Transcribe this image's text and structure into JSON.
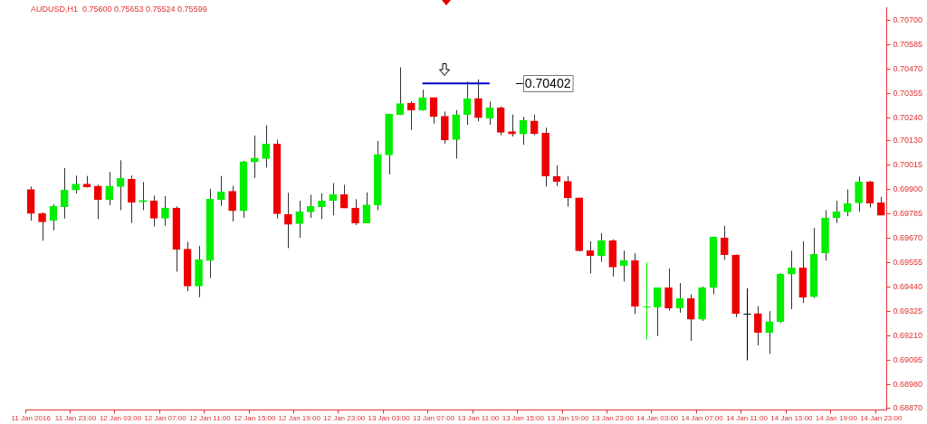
{
  "chart_data": {
    "type": "candlestick",
    "title": "AUDUSD,H1  0.75600 0.75653 0.75524 0.75599",
    "categories": [
      "11 Jan 2016",
      null,
      null,
      null,
      "11 Jan 23:00",
      null,
      null,
      null,
      "12 Jan 03:00",
      null,
      null,
      null,
      "12 Jan 07:00",
      null,
      null,
      null,
      "12 Jan 11:00",
      null,
      null,
      null,
      "12 Jan 15:00",
      null,
      null,
      null,
      "12 Jan 19:00",
      null,
      null,
      null,
      "12 Jan 23:00",
      null,
      null,
      null,
      "13 Jan 03:00",
      null,
      null,
      null,
      "13 Jan 07:00",
      null,
      null,
      null,
      "13 Jan 11:00",
      null,
      null,
      null,
      "13 Jan 15:00",
      null,
      null,
      null,
      "13 Jan 19:00",
      null,
      null,
      null,
      "13 Jan 23:00",
      null,
      null,
      null,
      "14 Jan 03:00",
      null,
      null,
      null,
      "14 Jan 07:00",
      null,
      null,
      null,
      "14 Jan 11:00",
      null,
      null,
      null,
      "14 Jan 15:00",
      null,
      null,
      null,
      "14 Jan 19:00",
      null,
      null,
      null,
      "14 Jan 23:00"
    ],
    "series": [
      {
        "colors": [
          "#ee0000",
          "#ee0000",
          "#00ee00",
          "#00ee00",
          "#00ee00",
          "#ee0000",
          "#ee0000",
          "#00ee00",
          "#00ee00",
          "#ee0000",
          "#00ee00",
          "#ee0000",
          "#00ee00",
          "#ee0000",
          "#ee0000",
          "#00ee00",
          "#00ee00",
          "#00ee00",
          "#ee0000",
          "#00ee00",
          "#00ee00",
          "#00ee00",
          "#ee0000",
          "#ee0000",
          "#00ee00",
          "#00ee00",
          "#00ee00",
          "#00ee00",
          "#ee0000",
          "#ee0000",
          "#00ee00",
          "#00ee00",
          "#00ee00",
          "#00ee00",
          "#ee0000",
          "#00ee00",
          "#ee0000",
          "#ee0000",
          "#00ee00",
          "#00ee00",
          "#ee0000",
          "#00ee00",
          "#ee0000",
          "#ee0000",
          "#00ee00",
          "#ee0000",
          "#ee0000",
          "#ee0000",
          "#ee0000",
          "#ee0000",
          "#ee0000",
          "#00ee00",
          "#ee0000",
          "#00ee00",
          "#ee0000",
          "#00ee00",
          "#00ee00",
          "#ee0000",
          "#00ee00",
          "#ee0000",
          "#00ee00",
          "#00ee00",
          "#ee0000",
          "#ee0000",
          "#000000",
          "#ee0000",
          "#00ee00",
          "#00ee00",
          "#00ee00",
          "#ee0000",
          "#00ee00",
          "#00ee00",
          "#00ee00",
          "#00ee00",
          "#00ee00",
          "#ee0000",
          "#ee0000"
        ],
        "ohlc": [
          [
            0.69901,
            0.69915,
            0.69754,
            0.69788
          ],
          [
            0.69788,
            0.69792,
            0.69659,
            0.69748
          ],
          [
            0.69754,
            0.69831,
            0.69708,
            0.69821
          ],
          [
            0.6982,
            0.70002,
            0.69764,
            0.69899
          ],
          [
            0.69899,
            0.69967,
            0.69882,
            0.69927
          ],
          [
            0.69927,
            0.69965,
            0.6991,
            0.69913
          ],
          [
            0.69917,
            0.69924,
            0.69761,
            0.69854
          ],
          [
            0.69854,
            0.69984,
            0.69827,
            0.69917
          ],
          [
            0.69915,
            0.70039,
            0.69803,
            0.69953
          ],
          [
            0.69949,
            0.69967,
            0.69743,
            0.69841
          ],
          [
            0.69842,
            0.69937,
            0.69803,
            0.6985
          ],
          [
            0.69848,
            0.69872,
            0.69726,
            0.69765
          ],
          [
            0.69765,
            0.69869,
            0.69729,
            0.69814
          ],
          [
            0.69814,
            0.69821,
            0.69513,
            0.69618
          ],
          [
            0.69619,
            0.69654,
            0.6942,
            0.69445
          ],
          [
            0.69445,
            0.69635,
            0.69392,
            0.69569
          ],
          [
            0.69565,
            0.69904,
            0.69483,
            0.69855
          ],
          [
            0.69854,
            0.69965,
            0.69824,
            0.69889
          ],
          [
            0.69893,
            0.69918,
            0.6975,
            0.698
          ],
          [
            0.698,
            0.70036,
            0.69767,
            0.70032
          ],
          [
            0.70031,
            0.70156,
            0.69955,
            0.70049
          ],
          [
            0.70047,
            0.70205,
            0.70005,
            0.70116
          ],
          [
            0.70116,
            0.70136,
            0.69764,
            0.69786
          ],
          [
            0.69784,
            0.69885,
            0.69624,
            0.69736
          ],
          [
            0.6974,
            0.69848,
            0.69673,
            0.69795
          ],
          [
            0.69795,
            0.69876,
            0.69767,
            0.69821
          ],
          [
            0.6982,
            0.69883,
            0.69761,
            0.69847
          ],
          [
            0.69848,
            0.69931,
            0.69779,
            0.69876
          ],
          [
            0.69876,
            0.69923,
            0.69813,
            0.69813
          ],
          [
            0.69814,
            0.69855,
            0.69733,
            0.69743
          ],
          [
            0.69743,
            0.69887,
            0.69743,
            0.69828
          ],
          [
            0.69828,
            0.7013,
            0.69803,
            0.70066
          ],
          [
            0.70064,
            0.70259,
            0.69972,
            0.70257
          ],
          [
            0.70255,
            0.70478,
            0.70252,
            0.70307
          ],
          [
            0.70309,
            0.70317,
            0.70182,
            0.70275
          ],
          [
            0.70276,
            0.70372,
            0.70273,
            0.70334
          ],
          [
            0.70335,
            0.70335,
            0.70212,
            0.70245
          ],
          [
            0.70247,
            0.70269,
            0.70118,
            0.70134
          ],
          [
            0.70137,
            0.70276,
            0.70047,
            0.70254
          ],
          [
            0.70254,
            0.7041,
            0.70206,
            0.7033
          ],
          [
            0.70331,
            0.70421,
            0.70223,
            0.7024
          ],
          [
            0.70238,
            0.70316,
            0.70207,
            0.70287
          ],
          [
            0.70287,
            0.70293,
            0.70157,
            0.70171
          ],
          [
            0.70174,
            0.70255,
            0.70151,
            0.70163
          ],
          [
            0.70163,
            0.70244,
            0.70112,
            0.70227
          ],
          [
            0.70224,
            0.70254,
            0.70157,
            0.70164
          ],
          [
            0.70168,
            0.70193,
            0.69914,
            0.69965
          ],
          [
            0.69963,
            0.70015,
            0.69917,
            0.69939
          ],
          [
            0.69939,
            0.69965,
            0.6982,
            0.69861
          ],
          [
            0.69862,
            0.69862,
            0.69608,
            0.69611
          ],
          [
            0.69612,
            0.69657,
            0.69504,
            0.69588
          ],
          [
            0.69588,
            0.69695,
            0.6956,
            0.6966
          ],
          [
            0.6966,
            0.69666,
            0.6949,
            0.69535
          ],
          [
            0.69541,
            0.69612,
            0.69466,
            0.69565
          ],
          [
            0.69565,
            0.696,
            0.69312,
            0.6935
          ],
          [
            0.6935,
            0.69556,
            0.69192,
            0.6935
          ],
          [
            0.69346,
            0.69437,
            0.69209,
            0.69437
          ],
          [
            0.69437,
            0.69528,
            0.69329,
            0.6934
          ],
          [
            0.69341,
            0.69459,
            0.69319,
            0.69386
          ],
          [
            0.69386,
            0.69406,
            0.69186,
            0.69288
          ],
          [
            0.69288,
            0.69442,
            0.6928,
            0.69438
          ],
          [
            0.69437,
            0.69677,
            0.69406,
            0.69677
          ],
          [
            0.69673,
            0.69729,
            0.69569,
            0.69593
          ],
          [
            0.69591,
            0.69594,
            0.69298,
            0.69315
          ],
          [
            0.69315,
            0.69434,
            0.69094,
            0.69315
          ],
          [
            0.69315,
            0.6935,
            0.69165,
            0.69226
          ],
          [
            0.69226,
            0.69326,
            0.69125,
            0.69277
          ],
          [
            0.69277,
            0.69506,
            0.6927,
            0.69501
          ],
          [
            0.69501,
            0.69612,
            0.69336,
            0.69531
          ],
          [
            0.69531,
            0.69657,
            0.69365,
            0.69392
          ],
          [
            0.69395,
            0.69719,
            0.69388,
            0.69595
          ],
          [
            0.69602,
            0.69803,
            0.69565,
            0.69767
          ],
          [
            0.69767,
            0.69848,
            0.69743,
            0.69796
          ],
          [
            0.69795,
            0.69901,
            0.69775,
            0.69835
          ],
          [
            0.69838,
            0.69962,
            0.69796,
            0.69937
          ],
          [
            0.69937,
            0.69942,
            0.69816,
            0.69837
          ],
          [
            0.69838,
            0.69866,
            0.69779,
            0.69779
          ]
        ]
      },
      {
        "type": "line",
        "color": "#0000cc",
        "values": [
          null,
          null,
          null,
          null,
          null,
          null,
          null,
          null,
          null,
          null,
          null,
          null,
          null,
          null,
          null,
          null,
          null,
          null,
          null,
          null,
          null,
          null,
          null,
          null,
          null,
          null,
          null,
          null,
          null,
          null,
          null,
          null,
          null,
          null,
          null,
          0.70402,
          0.70402,
          0.70402,
          0.70402,
          0.70402,
          0.70402,
          0.70402,
          null,
          null,
          null,
          null,
          null,
          null,
          null,
          null,
          null,
          null,
          null,
          null,
          null,
          null,
          null,
          null,
          null,
          null,
          null,
          null,
          null,
          null,
          null,
          null,
          null,
          null,
          null,
          null,
          null,
          null,
          null,
          null,
          null,
          null,
          null
        ]
      }
    ],
    "annotations": [
      "0.70402"
    ],
    "ylim": [
      0.6886,
      0.7076
    ],
    "yticks": [
      {
        "value": 0.707,
        "label": "0.70700"
      },
      {
        "value": 0.70585,
        "label": "0.70585"
      },
      {
        "value": 0.7047,
        "label": "0.70470"
      },
      {
        "value": 0.70355,
        "label": "0.70355"
      },
      {
        "value": 0.7024,
        "label": "0.70240"
      },
      {
        "value": 0.7013,
        "label": "0.70130"
      },
      {
        "value": 0.70015,
        "label": "0.70015"
      },
      {
        "value": 0.699,
        "label": "0.69900"
      },
      {
        "value": 0.69785,
        "label": "0.69785"
      },
      {
        "value": 0.6967,
        "label": "0.69670"
      },
      {
        "value": 0.69555,
        "label": "0.69555"
      },
      {
        "value": 0.6944,
        "label": "0.69440"
      },
      {
        "value": 0.69325,
        "label": "0.69325"
      },
      {
        "value": 0.6921,
        "label": "0.69210"
      },
      {
        "value": 0.69095,
        "label": "0.69095"
      },
      {
        "value": 0.6898,
        "label": "0.68980"
      },
      {
        "value": 0.6887,
        "label": "0.68870"
      }
    ],
    "grid": false,
    "legend": false,
    "marker": "none",
    "line_style": "solid"
  }
}
